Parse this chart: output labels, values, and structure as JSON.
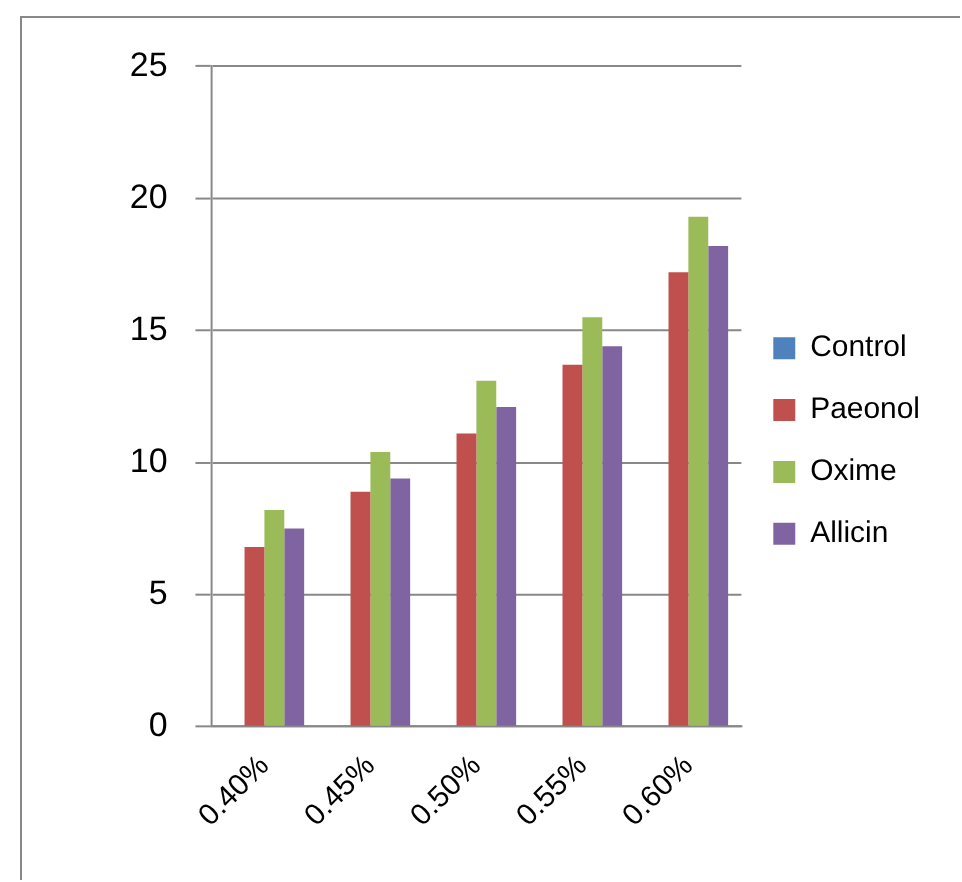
{
  "chart_data": {
    "type": "bar",
    "categories": [
      "0.40%",
      "0.45%",
      "0.50%",
      "0.55%",
      "0.60%"
    ],
    "series": [
      {
        "name": "Control",
        "color": "#4f81bd",
        "values": [
          0,
          0,
          0,
          0,
          0
        ]
      },
      {
        "name": "Paeonol",
        "color": "#c0504d",
        "values": [
          6.8,
          8.9,
          11.1,
          13.7,
          17.2
        ]
      },
      {
        "name": "Oxime",
        "color": "#9bbb59",
        "values": [
          8.2,
          10.4,
          13.1,
          15.5,
          19.3
        ]
      },
      {
        "name": "Allicin",
        "color": "#8064a2",
        "values": [
          7.5,
          9.4,
          12.1,
          14.4,
          18.2
        ]
      }
    ],
    "ylim": [
      0,
      25
    ],
    "yticks": [
      0,
      5,
      10,
      15,
      20,
      25
    ],
    "grid": "y",
    "legend": "right"
  }
}
